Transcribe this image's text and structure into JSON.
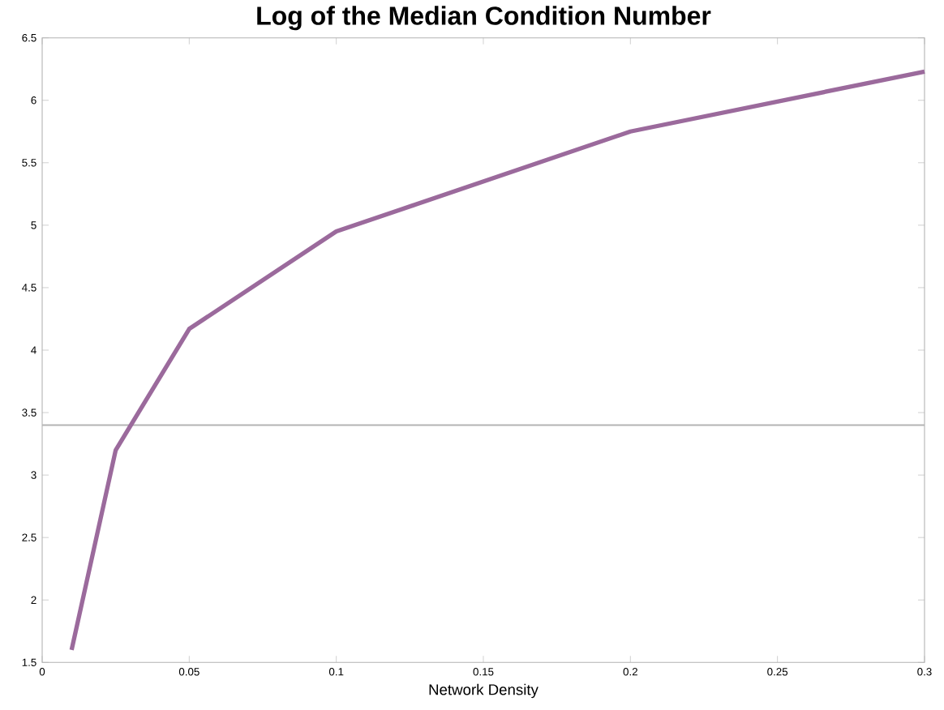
{
  "chart_data": {
    "type": "line",
    "title": "Log of the Median Condition Number",
    "xlabel": "Network Density",
    "x": [
      0.01,
      0.025,
      0.05,
      0.1,
      0.2,
      0.3
    ],
    "series": [
      {
        "color": "#9b6a9c",
        "values": [
          1.6,
          3.2,
          4.17,
          4.95,
          5.75,
          6.23
        ]
      }
    ],
    "xlim": [
      0,
      0.3
    ],
    "xticks": [
      0,
      0.05,
      0.1,
      0.15,
      0.2,
      0.25,
      0.3
    ],
    "ylim": [
      1.5,
      6.5
    ],
    "yticks": [
      1.5,
      2,
      2.5,
      3,
      3.5,
      4,
      4.5,
      5,
      5.5,
      6,
      6.5
    ],
    "ref_lines": [
      {
        "axis": "y",
        "value": 3.4,
        "color": "#b4b4b4"
      }
    ],
    "grid": false,
    "marker": "none",
    "line_style": "solid"
  }
}
